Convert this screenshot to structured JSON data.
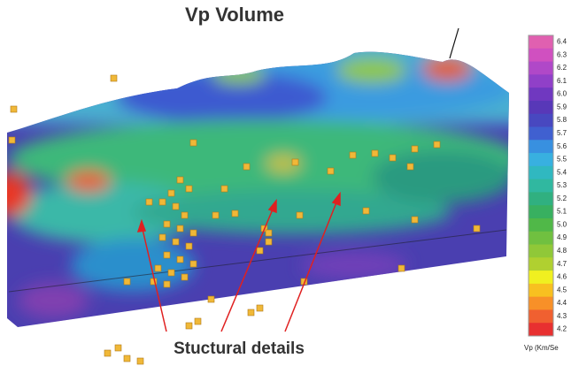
{
  "title": "Vp Volume",
  "annotation": "Stuctural details",
  "colorbar": {
    "labels": [
      "6.4",
      "6.3",
      "6.2",
      "6.1",
      "6.0",
      "5.9",
      "5.8",
      "5.7",
      "5.6",
      "5.5",
      "5.4",
      "5.3",
      "5.2",
      "5.1",
      "5.0",
      "4.9",
      "4.8",
      "4.7",
      "4.6",
      "4.5",
      "4.4",
      "4.3",
      "4.2"
    ],
    "unit_label": "Vp (Km/Se"
  }
}
